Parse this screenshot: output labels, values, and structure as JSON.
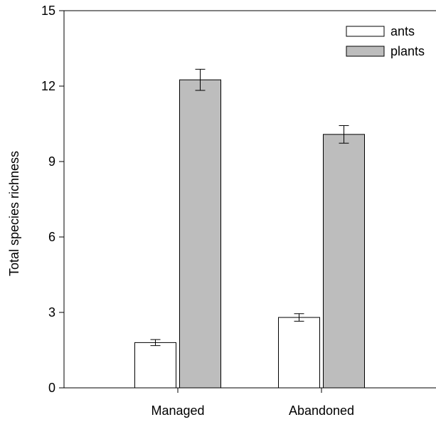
{
  "chart_data": {
    "type": "bar",
    "title": "",
    "xlabel": "",
    "ylabel": "Total species richness",
    "ylim": [
      0,
      15
    ],
    "yticks": [
      0,
      3,
      6,
      9,
      12,
      15
    ],
    "grid": false,
    "legend_position": "top-right",
    "categories": [
      "Managed",
      "Abandoned"
    ],
    "series": [
      {
        "name": "ants",
        "color": "#ffffff",
        "values": [
          1.8,
          2.8
        ],
        "errors": [
          0.12,
          0.15
        ]
      },
      {
        "name": "plants",
        "color": "#bdbdbd",
        "values": [
          12.25,
          10.08
        ],
        "errors": [
          0.42,
          0.35
        ]
      }
    ]
  }
}
